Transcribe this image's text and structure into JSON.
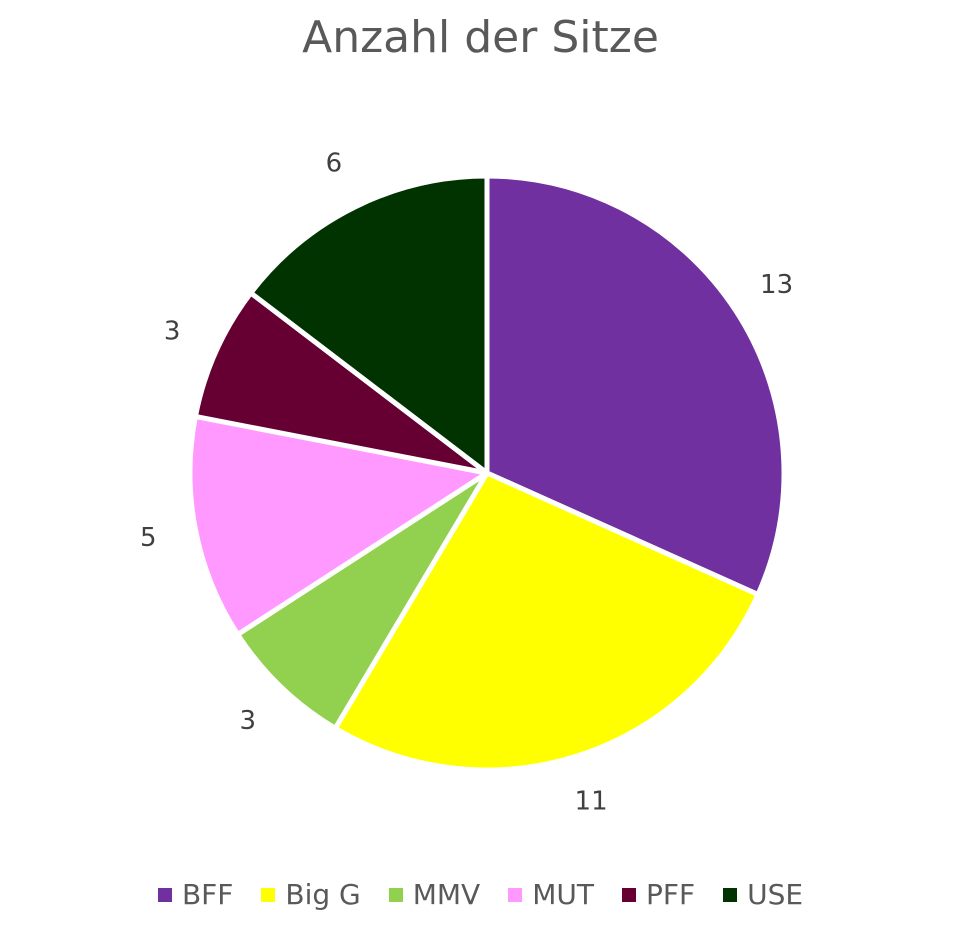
{
  "chart_data": {
    "type": "pie",
    "title": "Anzahl der Sitze",
    "categories": [
      "BFF",
      "Big G",
      "MMV",
      "MUT",
      "PFF",
      "USE"
    ],
    "values": [
      13,
      11,
      3,
      5,
      3,
      6
    ],
    "colors": [
      "#7030a0",
      "#ffff00",
      "#92d050",
      "#ff99ff",
      "#660033",
      "#003300"
    ],
    "legend_position": "bottom",
    "start_angle": "top, clockwise"
  }
}
